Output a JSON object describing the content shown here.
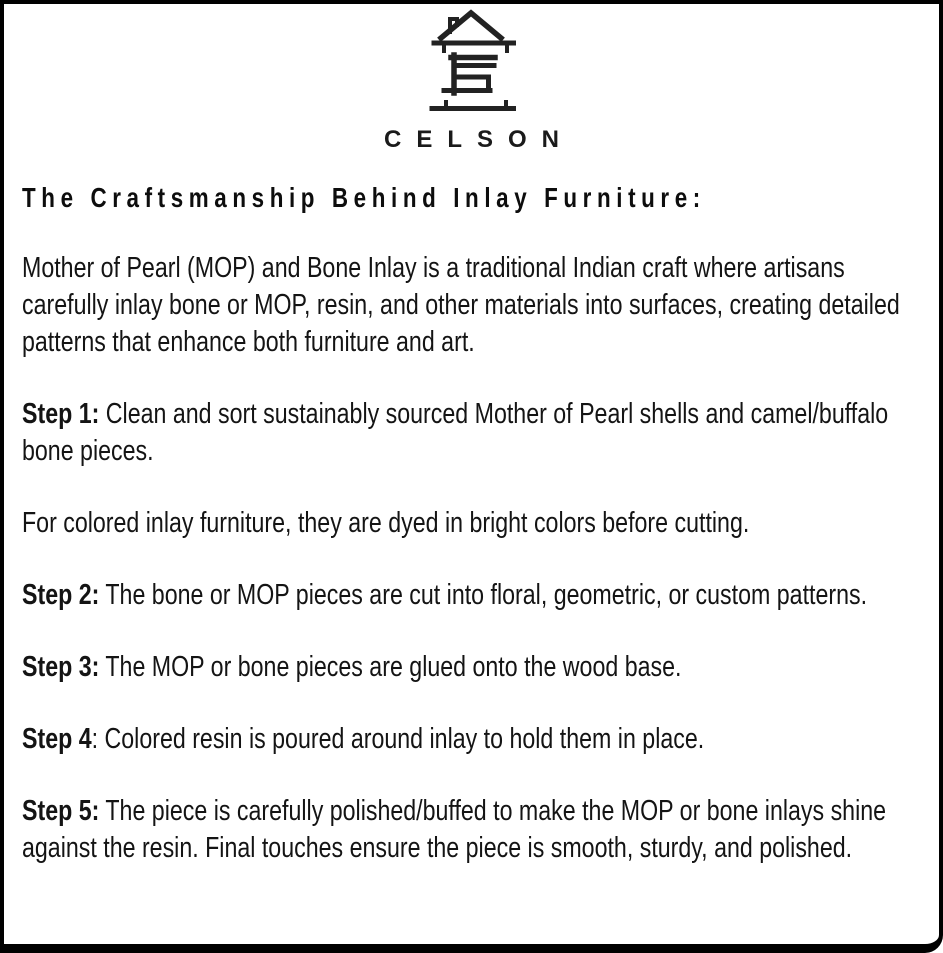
{
  "page": {
    "background": "#ffffff",
    "border_color": "#000000",
    "text_color": "#141414"
  },
  "logo": {
    "icon": "house-logo-icon",
    "brand": "CELSON"
  },
  "heading": "The Craftsmanship Behind Inlay Furniture:",
  "body": {
    "paragraphs": [
      {
        "runs": [
          {
            "bold": false,
            "text": "Mother of Pearl (MOP) and Bone Inlay is a traditional Indian craft where artisans carefully inlay bone or MOP, resin, and other materials into surfaces, creating detailed patterns that enhance both furniture and art."
          }
        ]
      },
      {
        "runs": [
          {
            "bold": true,
            "text": "Step 1:"
          },
          {
            "bold": false,
            "text": " Clean and sort sustainably sourced Mother of Pearl shells and camel/buffalo bone pieces."
          }
        ]
      },
      {
        "runs": [
          {
            "bold": false,
            "text": "For colored inlay furniture, they are dyed in bright colors before cutting."
          }
        ]
      },
      {
        "runs": [
          {
            "bold": true,
            "text": "Step 2:"
          },
          {
            "bold": false,
            "text": " The bone or MOP pieces are cut into floral, geometric, or custom patterns."
          }
        ]
      },
      {
        "runs": [
          {
            "bold": true,
            "text": "Step 3:"
          },
          {
            "bold": false,
            "text": " The MOP or bone pieces are glued onto the wood base."
          }
        ]
      },
      {
        "runs": [
          {
            "bold": true,
            "text": "Step 4"
          },
          {
            "bold": false,
            "text": ": Colored resin is poured around inlay to hold them in place."
          }
        ]
      },
      {
        "runs": [
          {
            "bold": true,
            "text": "Step 5:"
          },
          {
            "bold": false,
            "text": " The piece is carefully polished/buffed to make the MOP or bone inlays shine against the resin. Final touches ensure the piece is smooth, sturdy, and polished."
          }
        ]
      }
    ]
  }
}
